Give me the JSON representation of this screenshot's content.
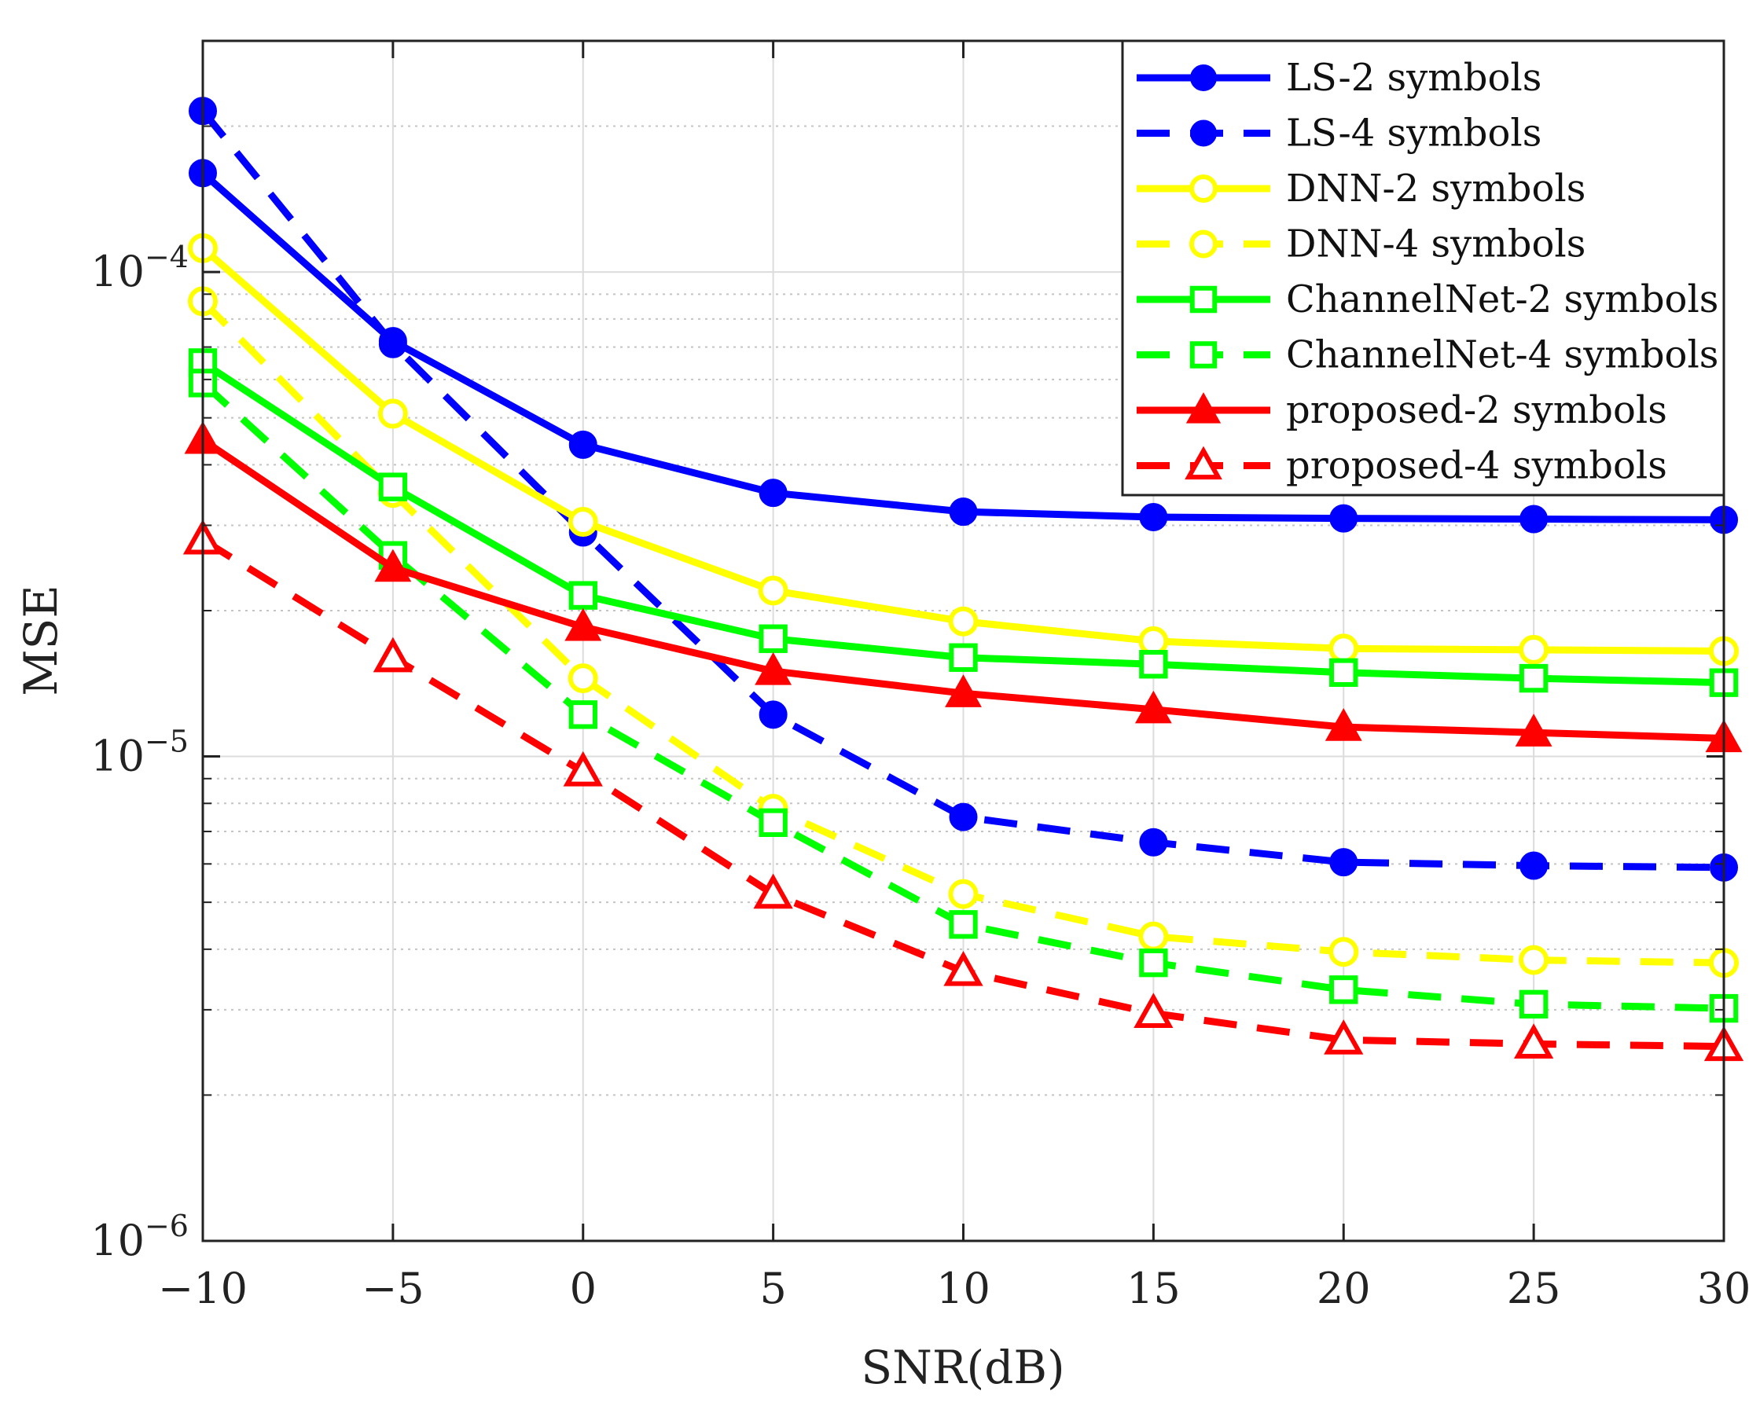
{
  "chart_data": {
    "type": "line",
    "xlabel": "SNR(dB)",
    "ylabel": "MSE",
    "xlim": [
      -10,
      30
    ],
    "ylim": [
      1e-06,
      0.0003
    ],
    "yscale": "log",
    "x_ticks": [
      -10,
      -5,
      0,
      5,
      10,
      15,
      20,
      25,
      30
    ],
    "x_tick_labels": [
      "−10",
      "−5",
      "0",
      "5",
      "10",
      "15",
      "20",
      "25",
      "30"
    ],
    "y_ticks": [
      1e-06,
      1e-05,
      0.0001
    ],
    "y_tick_labels": [
      {
        "base": "10",
        "exp": "−6"
      },
      {
        "base": "10",
        "exp": "−5"
      },
      {
        "base": "10",
        "exp": "−4"
      }
    ],
    "grid": true,
    "legend_position": "top-right",
    "x": [
      -10,
      -5,
      0,
      5,
      10,
      15,
      20,
      25,
      30
    ],
    "series": [
      {
        "name": "LS-2 symbols",
        "color": "#0000ff",
        "dash": "solid",
        "marker": "filled-circle",
        "values": [
          0.00016,
          7.2e-05,
          4.4e-05,
          3.5e-05,
          3.2e-05,
          3.12e-05,
          3.1e-05,
          3.09e-05,
          3.08e-05
        ]
      },
      {
        "name": "LS-4 symbols",
        "color": "#0000ff",
        "dash": "dashed",
        "marker": "filled-circle",
        "values": [
          0.000215,
          7.1e-05,
          2.9e-05,
          1.22e-05,
          7.5e-06,
          6.65e-06,
          6.05e-06,
          5.95e-06,
          5.9e-06
        ]
      },
      {
        "name": "DNN-2 symbols",
        "color": "#ffff00",
        "dash": "solid",
        "marker": "open-circle",
        "values": [
          0.000112,
          5.1e-05,
          3.05e-05,
          2.2e-05,
          1.9e-05,
          1.73e-05,
          1.67e-05,
          1.66e-05,
          1.65e-05
        ]
      },
      {
        "name": "DNN-4 symbols",
        "color": "#ffff00",
        "dash": "dashed",
        "marker": "open-circle",
        "values": [
          8.7e-05,
          3.5e-05,
          1.45e-05,
          7.8e-06,
          5.2e-06,
          4.25e-06,
          3.95e-06,
          3.8e-06,
          3.75e-06
        ]
      },
      {
        "name": "ChannelNet-2 symbols",
        "color": "#00ff00",
        "dash": "solid",
        "marker": "open-square",
        "values": [
          6.5e-05,
          3.6e-05,
          2.15e-05,
          1.75e-05,
          1.6e-05,
          1.55e-05,
          1.49e-05,
          1.45e-05,
          1.42e-05
        ]
      },
      {
        "name": "ChannelNet-4 symbols",
        "color": "#00ff00",
        "dash": "dashed",
        "marker": "open-square",
        "values": [
          5.9e-05,
          2.6e-05,
          1.22e-05,
          7.3e-06,
          4.5e-06,
          3.75e-06,
          3.3e-06,
          3.08e-06,
          3.02e-06
        ]
      },
      {
        "name": "proposed-2 symbols",
        "color": "#ff0000",
        "dash": "solid",
        "marker": "filled-triangle",
        "values": [
          4.5e-05,
          2.45e-05,
          1.85e-05,
          1.5e-05,
          1.35e-05,
          1.25e-05,
          1.15e-05,
          1.12e-05,
          1.09e-05
        ]
      },
      {
        "name": "proposed-4 symbols",
        "color": "#ff0000",
        "dash": "dashed",
        "marker": "open-triangle",
        "values": [
          2.8e-05,
          1.6e-05,
          9.3e-06,
          5.2e-06,
          3.6e-06,
          2.95e-06,
          2.6e-06,
          2.55e-06,
          2.52e-06
        ]
      }
    ]
  }
}
